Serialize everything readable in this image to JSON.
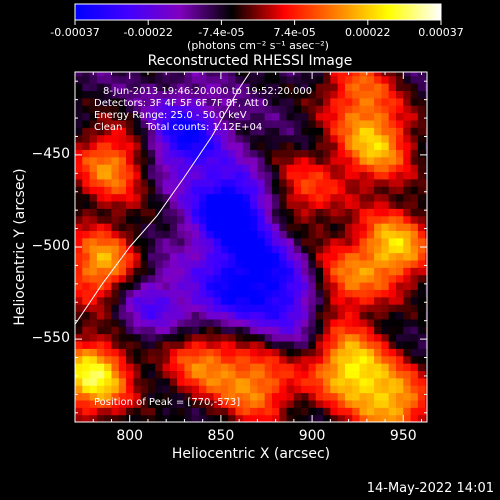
{
  "chart_data": {
    "type": "heatmap",
    "title": "Reconstructed RHESSI Image",
    "xlabel": "Heliocentric X (arcsec)",
    "ylabel": "Heliocentric Y (arcsec)",
    "xlim": [
      770,
      963
    ],
    "ylim": [
      -595,
      -405
    ],
    "x_ticks": [
      800,
      850,
      900,
      950
    ],
    "y_ticks": [
      -450,
      -500,
      -550
    ],
    "colorbar": {
      "range": [
        -0.00037,
        0.00037
      ],
      "tick_labels": [
        "-0.00037",
        "-0.00022",
        "-7.4e-05",
        "7.4e-05",
        "0.00022",
        "0.00037"
      ],
      "units_label": "(photons cm⁻² s⁻¹ asec⁻²)",
      "colormap": [
        "#0000ff",
        "#4000ff",
        "#8000c0",
        "#000000",
        "#ff0000",
        "#ff8000",
        "#ffff00",
        "#ffffff"
      ]
    },
    "annotations": {
      "time": "8-Jun-2013 19:46:20.000 to 19:52:20.000",
      "detectors": "Detectors: 3F 4F 5F 6F 7F 8F, Att 0",
      "energy": "Energy Range: 25.0 - 50.0 keV",
      "method": "Clean",
      "counts": "Total counts: 1.12E+04",
      "peak": "Position of Peak = [770,-573]"
    },
    "peak_position": [
      770,
      -573
    ],
    "limb_curve": [
      [
        770,
        -542
      ],
      [
        785,
        -520
      ],
      [
        800,
        -500
      ],
      [
        815,
        -483
      ],
      [
        830,
        -462
      ],
      [
        845,
        -440
      ],
      [
        860,
        -414
      ],
      [
        866,
        -405
      ]
    ],
    "intensity_sources": [
      {
        "x": 780,
        "y": -570,
        "strength": 0.00037
      },
      {
        "x": 785,
        "y": -510,
        "strength": 0.0003
      },
      {
        "x": 790,
        "y": -455,
        "strength": 0.00026
      },
      {
        "x": 840,
        "y": -560,
        "strength": 0.00024
      },
      {
        "x": 870,
        "y": -575,
        "strength": 0.00025
      },
      {
        "x": 920,
        "y": -565,
        "strength": 0.00033
      },
      {
        "x": 945,
        "y": -585,
        "strength": 0.00028
      },
      {
        "x": 945,
        "y": -500,
        "strength": 0.00031
      },
      {
        "x": 915,
        "y": -520,
        "strength": 0.00022
      },
      {
        "x": 935,
        "y": -445,
        "strength": 0.00028
      },
      {
        "x": 895,
        "y": -470,
        "strength": 0.00018
      },
      {
        "x": 925,
        "y": -415,
        "strength": 0.0002
      },
      {
        "x": 855,
        "y": -480,
        "strength": -0.00035
      },
      {
        "x": 830,
        "y": -440,
        "strength": -0.00026
      },
      {
        "x": 870,
        "y": -510,
        "strength": -0.00022
      },
      {
        "x": 850,
        "y": -530,
        "strength": -0.00018
      },
      {
        "x": 890,
        "y": -530,
        "strength": -0.0002
      },
      {
        "x": 810,
        "y": -530,
        "strength": -0.00016
      }
    ]
  },
  "footer_timestamp": "14-May-2022 14:01"
}
